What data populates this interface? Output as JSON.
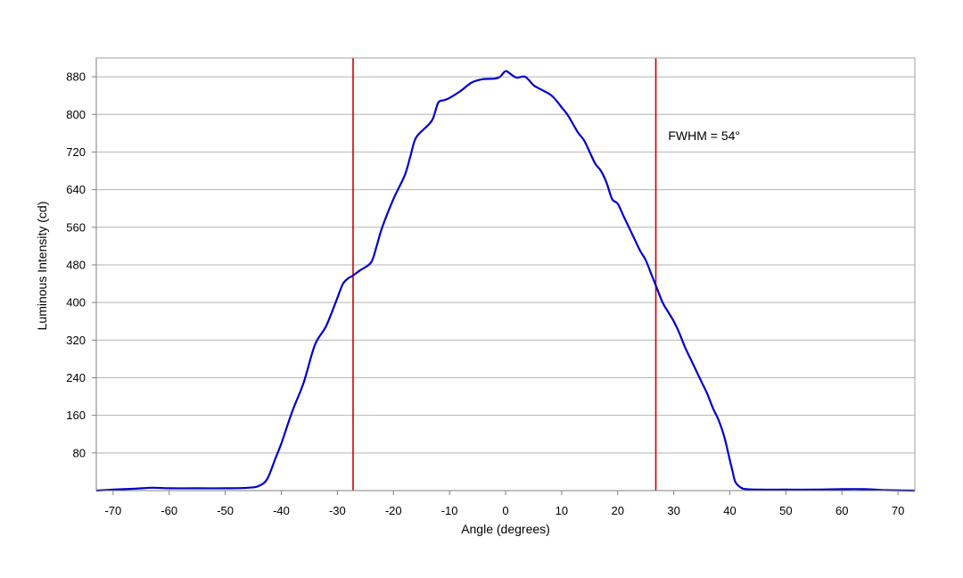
{
  "chart_data": {
    "type": "line",
    "title": "",
    "xlabel": "Angle (degrees)",
    "ylabel": "Luminous Intensity (cd)",
    "xlim": [
      -73,
      73
    ],
    "ylim": [
      0,
      920
    ],
    "x_ticks": [
      -70,
      -60,
      -50,
      -40,
      -30,
      -20,
      -10,
      0,
      10,
      20,
      30,
      40,
      50,
      60,
      70
    ],
    "y_ticks": [
      80,
      160,
      240,
      320,
      400,
      480,
      560,
      640,
      720,
      800,
      880
    ],
    "grid": "horizontal",
    "legend": "none",
    "series": [
      {
        "color": "#0000cc",
        "x": [
          -73,
          -70,
          -66,
          -63,
          -60,
          -55,
          -50,
          -46,
          -44,
          -42.5,
          -41,
          -40,
          -38,
          -36,
          -34,
          -32,
          -30,
          -29,
          -28,
          -27.5,
          -26,
          -24,
          -23,
          -22,
          -20,
          -18,
          -17,
          -16,
          -14,
          -13,
          -12,
          -11,
          -10,
          -8,
          -6,
          -4,
          -2,
          -1,
          0,
          1,
          2,
          3.5,
          5,
          6,
          8,
          9,
          10,
          11,
          12,
          13,
          14,
          15,
          16,
          17,
          18,
          19,
          20,
          21,
          22,
          23,
          24,
          25,
          26,
          27,
          28,
          29,
          30,
          31,
          32,
          33,
          34,
          35,
          36,
          37,
          38,
          39,
          40,
          40.5,
          41,
          42,
          43,
          45,
          50,
          55,
          60,
          64,
          68,
          73
        ],
        "y": [
          0,
          2,
          4,
          6,
          5,
          5,
          5,
          6,
          10,
          25,
          70,
          100,
          170,
          230,
          310,
          350,
          410,
          440,
          452,
          455,
          468,
          485,
          520,
          560,
          620,
          670,
          710,
          750,
          775,
          790,
          825,
          830,
          835,
          850,
          868,
          875,
          876,
          880,
          892,
          885,
          878,
          880,
          862,
          855,
          842,
          830,
          815,
          800,
          780,
          760,
          745,
          720,
          695,
          680,
          655,
          620,
          610,
          585,
          560,
          535,
          510,
          490,
          460,
          430,
          400,
          380,
          360,
          335,
          305,
          280,
          255,
          230,
          205,
          175,
          150,
          115,
          65,
          40,
          18,
          6,
          3,
          2,
          2,
          2,
          3,
          3,
          1,
          0
        ]
      }
    ],
    "vlines": [
      {
        "x": -27.2,
        "color": "#cc0000"
      },
      {
        "x": 26.8,
        "color": "#cc0000"
      }
    ],
    "annotation": {
      "text": "FWHM = 54°",
      "x": 29,
      "y": 755
    }
  }
}
